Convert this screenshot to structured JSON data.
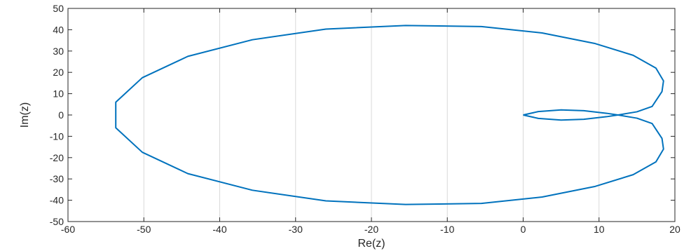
{
  "chart_data": {
    "type": "line",
    "xlabel": "Re(z)",
    "ylabel": "Im(z)",
    "xlim": [
      -60,
      20
    ],
    "ylim": [
      -50,
      50
    ],
    "xticks": [
      -60,
      -50,
      -40,
      -30,
      -20,
      -10,
      0,
      10,
      20
    ],
    "yticks": [
      -50,
      -40,
      -30,
      -20,
      -10,
      0,
      10,
      20,
      30,
      40,
      50
    ],
    "grid": "vertical",
    "color": "#0072bd",
    "series": [
      {
        "x": [
          0,
          2,
          5,
          8,
          11,
          12.5,
          15,
          17,
          18.3,
          18.5,
          17.5,
          14.5,
          9.5,
          2.5,
          -5.5,
          -15.5,
          -26,
          -35.7,
          -44.2,
          -50.2,
          -53.7,
          -53.7,
          -50.2,
          -44.2,
          -35.7,
          -26,
          -15.5,
          -5.5,
          2.5,
          9.5,
          14.5,
          17.5,
          18.5,
          18.3,
          17,
          15,
          12.5,
          11,
          8,
          5,
          2,
          0
        ],
        "y": [
          0,
          -1.6,
          -2.4,
          -2.0,
          -0.8,
          0,
          1.5,
          4,
          11,
          16,
          22,
          28,
          33.5,
          38.5,
          41.5,
          42,
          40.3,
          35.3,
          27.5,
          17.5,
          6,
          -6,
          -17.5,
          -27.5,
          -35.3,
          -40.3,
          -42,
          -41.5,
          -38.5,
          -33.5,
          -28,
          -22,
          -16,
          -11,
          -4,
          -1.5,
          0,
          0.8,
          2.0,
          2.4,
          1.6,
          0
        ]
      }
    ]
  }
}
